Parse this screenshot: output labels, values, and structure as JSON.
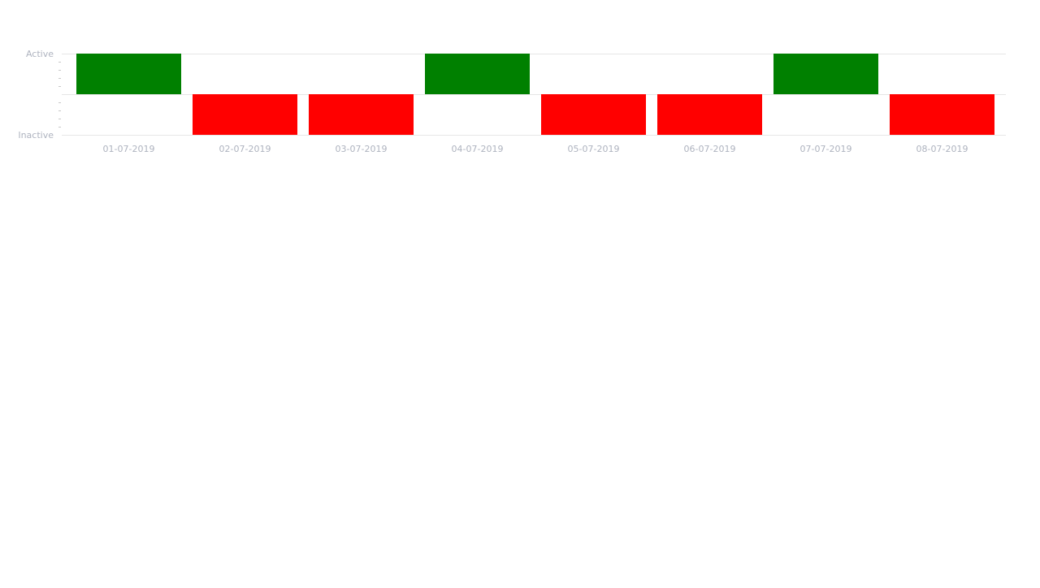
{
  "chart_data": {
    "type": "bar",
    "title": "",
    "xlabel": "",
    "ylabel": "",
    "categories": [
      "01-07-2019",
      "02-07-2019",
      "03-07-2019",
      "04-07-2019",
      "05-07-2019",
      "06-07-2019",
      "07-07-2019",
      "08-07-2019"
    ],
    "values": [
      1,
      -1,
      -1,
      1,
      -1,
      -1,
      1,
      -1
    ],
    "ylim": [
      -1,
      1
    ],
    "y_tick_labels": {
      "top": "Active",
      "bottom": "Inactive"
    },
    "grid": true,
    "legend": "none",
    "colors": {
      "positive": "#008000",
      "negative": "#ff0000",
      "axis_text": "#aeb3bf",
      "grid": "#e6e6e6",
      "minor_tick": "#c8c8c8"
    }
  }
}
